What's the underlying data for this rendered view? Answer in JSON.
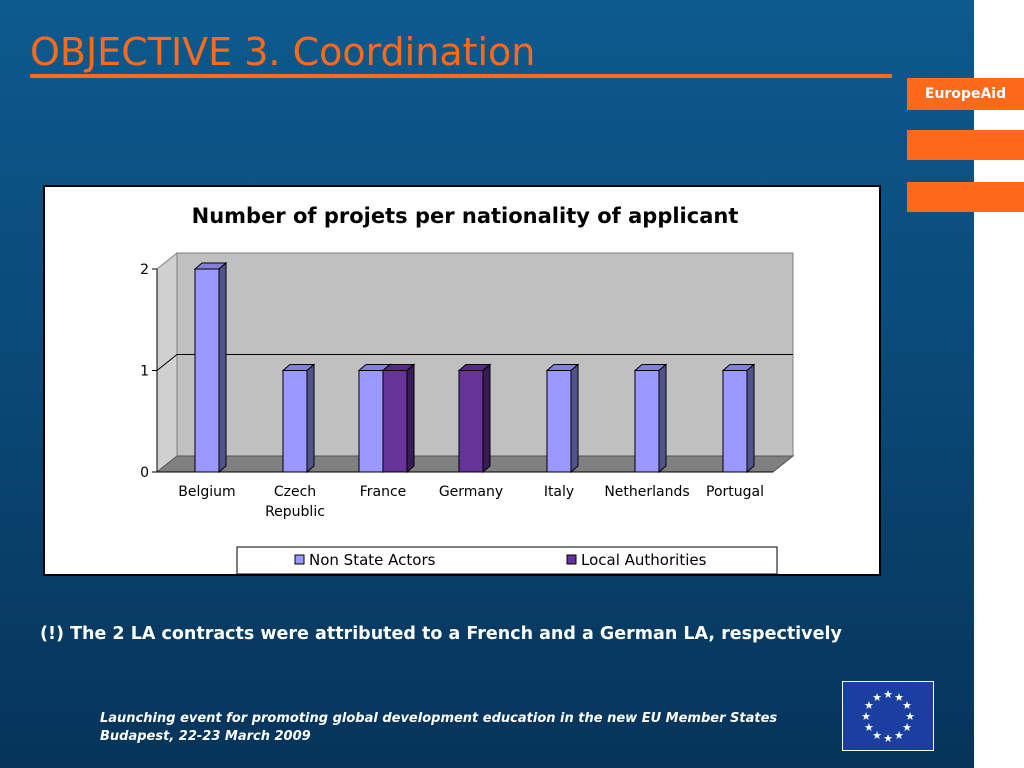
{
  "slide": {
    "title": "OBJECTIVE 3. Coordination",
    "brand": "EuropeAid",
    "note": "(!) The 2 LA contracts were attributed to a French and a German LA, respectively",
    "footer_line1": "Launching event for promoting global development education in the new EU Member States",
    "footer_line2": "Budapest, 22-23 March 2009"
  },
  "colors": {
    "accent": "#ff6a1a",
    "background": "#0a4a78",
    "series_nsa": "#9999ff",
    "series_la": "#663399",
    "plot_wall": "#c0c0c0",
    "plot_floor": "#808080",
    "eu_blue": "#1b3fa0",
    "eu_star": "#ffffff"
  },
  "chart_data": {
    "type": "bar",
    "title": "Number of projets per nationality of applicant",
    "categories": [
      "Belgium",
      "Czech Republic",
      "France",
      "Germany",
      "Italy",
      "Netherlands",
      "Portugal"
    ],
    "series": [
      {
        "name": "Non State Actors",
        "values": [
          2,
          1,
          1,
          0,
          1,
          1,
          1
        ]
      },
      {
        "name": "Local Authorities",
        "values": [
          0,
          0,
          1,
          1,
          0,
          0,
          0
        ]
      }
    ],
    "yticks": [
      "0",
      "1",
      "2"
    ],
    "ylim": [
      0,
      2
    ],
    "grid": true,
    "legend_position": "bottom",
    "three_d": true
  }
}
